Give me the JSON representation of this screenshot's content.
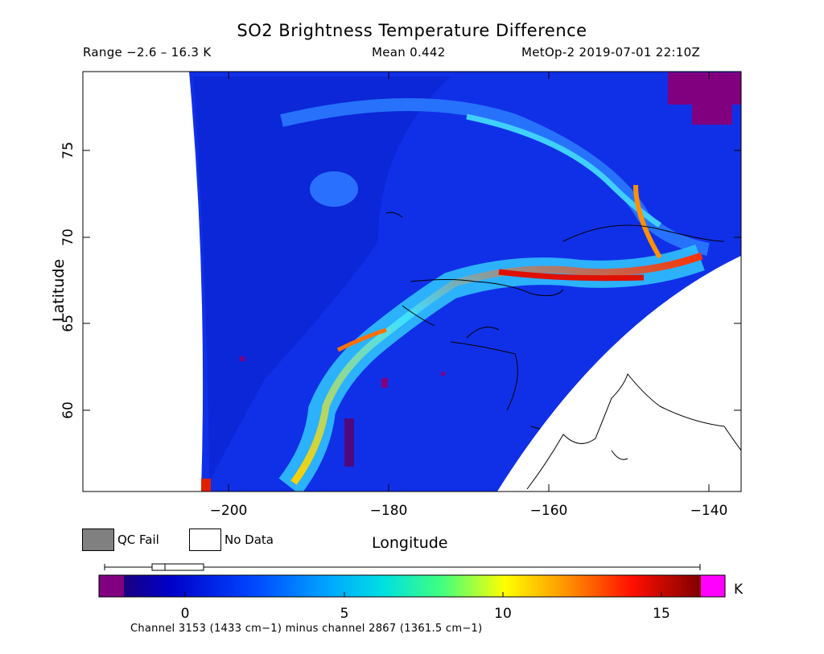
{
  "header": {
    "title": "SO2 Brightness Temperature Difference",
    "range": "Range −2.6 – 16.3 K",
    "mean": "Mean 0.442",
    "satellite_time": "MetOp-2 2019-07-01 22:10Z"
  },
  "axes": {
    "ylabel": "Latitude",
    "xlabel": "Longitude",
    "y_ticks": [
      "75",
      "70",
      "65",
      "60"
    ],
    "x_ticks": [
      "−200",
      "−180",
      "−160",
      "−140"
    ]
  },
  "legend": {
    "qc_fail": "QC Fail",
    "no_data": "No Data",
    "qc_fail_color": "#808080",
    "no_data_color": "#ffffff"
  },
  "colorbar": {
    "ticks": [
      "0",
      "5",
      "10",
      "15"
    ],
    "unit": "K",
    "below_color": "#800080",
    "above_color": "#ff00ff"
  },
  "footnote": "Channel 3153 (1433 cm−1) minus channel 2867 (1361.5 cm−1)"
}
